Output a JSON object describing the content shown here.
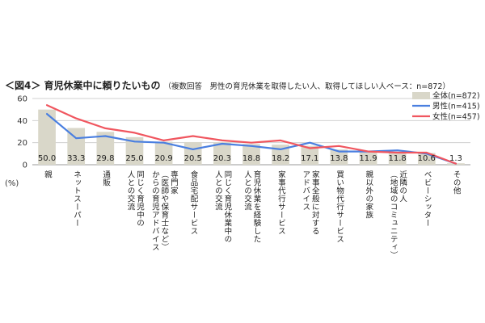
{
  "header": {
    "title": "＜図4＞ 育児休業中に頼りたいもの",
    "note": "（複数回答　男性の育児休業を取得したい人、取得してほしい人ベース：n=872）"
  },
  "chart_data": {
    "type": "bar",
    "unit_label": "(%)",
    "ylim": [
      0,
      60
    ],
    "yticks": [
      0,
      20,
      40,
      60
    ],
    "grid": true,
    "legend_position": "top-right",
    "categories": [
      "親",
      "ネットスーパー",
      "通販",
      "同じく育児中の\n人との交流",
      "専門家\n（医師や保育士など）\nからの育児アドバイス",
      "食品宅配サービス",
      "同じく育児休業中の\n人との交流",
      "育児休業を経験した\n人との交流",
      "家事代行サービス",
      "家事全般に対する\nアドバイス",
      "買い物代行サービス",
      "親以外の家族",
      "近隣の人\n（地域のコミュニティ）",
      "ベビーシッター",
      "その他"
    ],
    "series": [
      {
        "name": "全体(n=872)",
        "type": "bar",
        "color": "#d9d7c9",
        "values": [
          50.0,
          33.3,
          29.8,
          25.0,
          20.9,
          20.5,
          20.3,
          18.8,
          18.2,
          17.1,
          13.8,
          11.9,
          11.8,
          10.6,
          1.3
        ],
        "labels": [
          "50.0",
          "33.3",
          "29.8",
          "25.0",
          "20.9",
          "20.5",
          "20.3",
          "18.8",
          "18.2",
          "17.1",
          "13.8",
          "11.9",
          "11.8",
          "10.6",
          "1.3"
        ]
      },
      {
        "name": "男性(n=415)",
        "type": "line",
        "color": "#4a7fe0",
        "values": [
          46,
          24,
          26,
          21,
          20,
          14,
          19,
          17,
          14,
          20,
          12,
          12,
          13,
          10,
          1
        ]
      },
      {
        "name": "女性(n=457)",
        "type": "line",
        "color": "#f0565f",
        "values": [
          54,
          42,
          33,
          29,
          22,
          26,
          22,
          20,
          22,
          15,
          17,
          12,
          11,
          11,
          1
        ]
      }
    ]
  }
}
